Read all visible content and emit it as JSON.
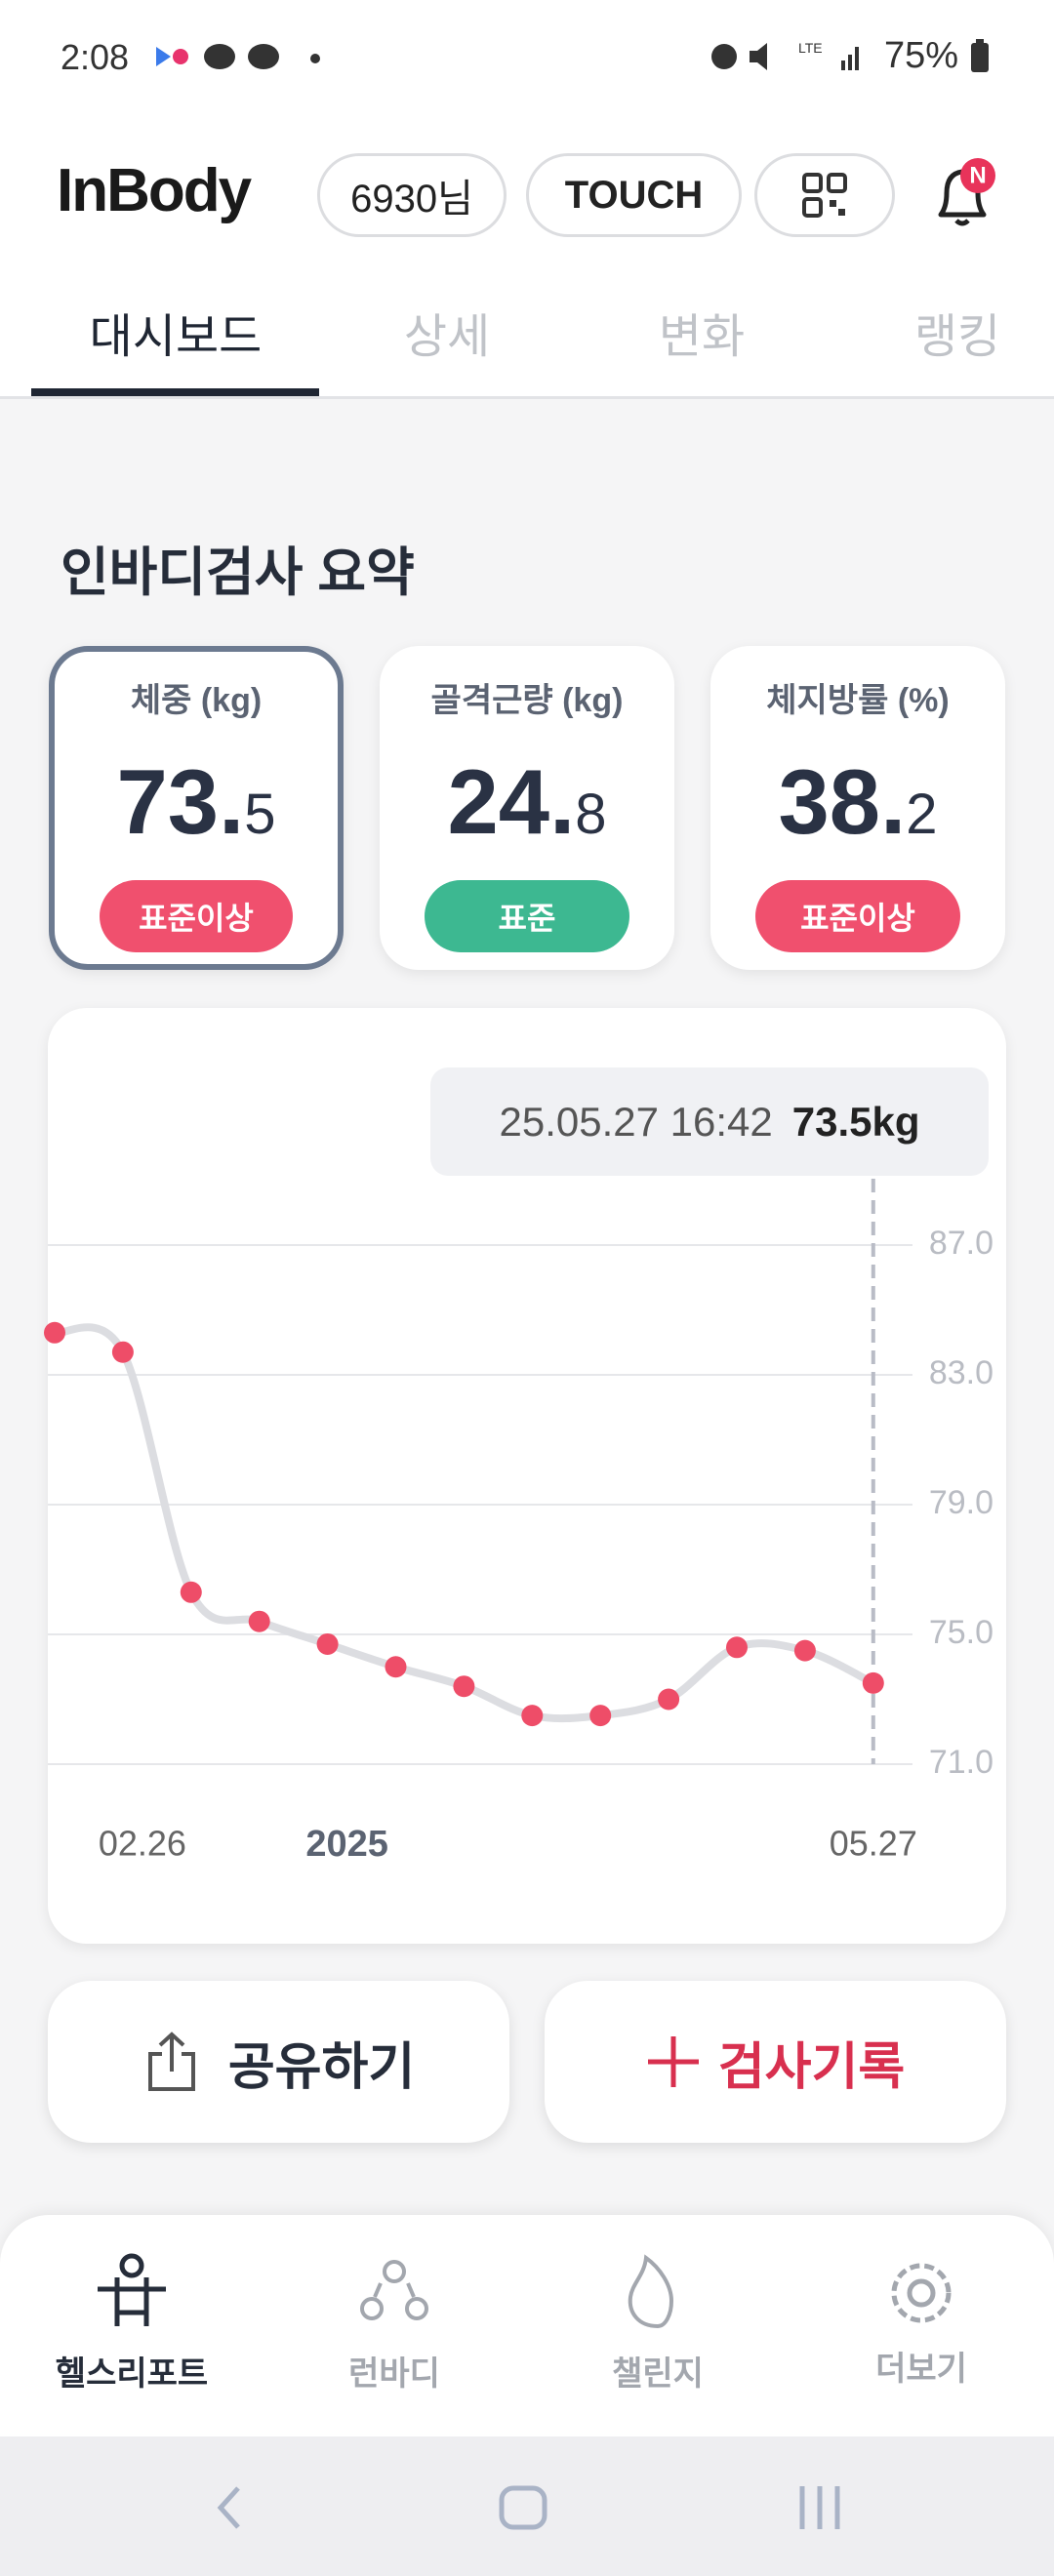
{
  "status_bar": {
    "time": "2:08",
    "battery": "75%",
    "network": "LTE"
  },
  "header": {
    "logo": "InBody",
    "user": "6930님",
    "touch": "TOUCH",
    "badge": "N"
  },
  "tabs": [
    "대시보드",
    "상세",
    "변화",
    "랭킹"
  ],
  "summary": {
    "title": "인바디검사 요약",
    "cards": [
      {
        "label": "체중 (kg)",
        "value": "73.5",
        "status": "표준이상"
      },
      {
        "label": "골격근량 (kg)",
        "value": "24.8",
        "status": "표준"
      },
      {
        "label": "체지방률 (%)",
        "value": "38.2",
        "status": "표준이상"
      }
    ]
  },
  "chart_data": {
    "type": "line",
    "categories": [
      null,
      "02.26",
      null,
      null,
      "2025",
      null,
      null,
      null,
      null,
      null,
      null,
      null,
      "05.27"
    ],
    "values": [
      84.3,
      83.7,
      76.3,
      75.4,
      74.7,
      74.0,
      73.4,
      72.5,
      72.5,
      73.0,
      74.6,
      74.5,
      73.5
    ],
    "color": "#ee4d68",
    "line_color": "#dcdde1",
    "ylim": [
      71,
      87
    ],
    "yticks": [
      {
        "value": 71,
        "label": "71.0"
      },
      {
        "value": 75,
        "label": "75.0"
      },
      {
        "value": 79,
        "label": "79.0"
      },
      {
        "value": 83,
        "label": "83.0"
      },
      {
        "value": 87,
        "label": "87.0"
      }
    ],
    "grid": true,
    "tooltip": {
      "date": "25.05.27 16:42",
      "value": "73.5kg"
    }
  },
  "buttons": {
    "share": "공유하기",
    "record": "검사기록"
  },
  "nav": [
    "헬스리포트",
    "런바디",
    "챌린지",
    "더보기"
  ]
}
